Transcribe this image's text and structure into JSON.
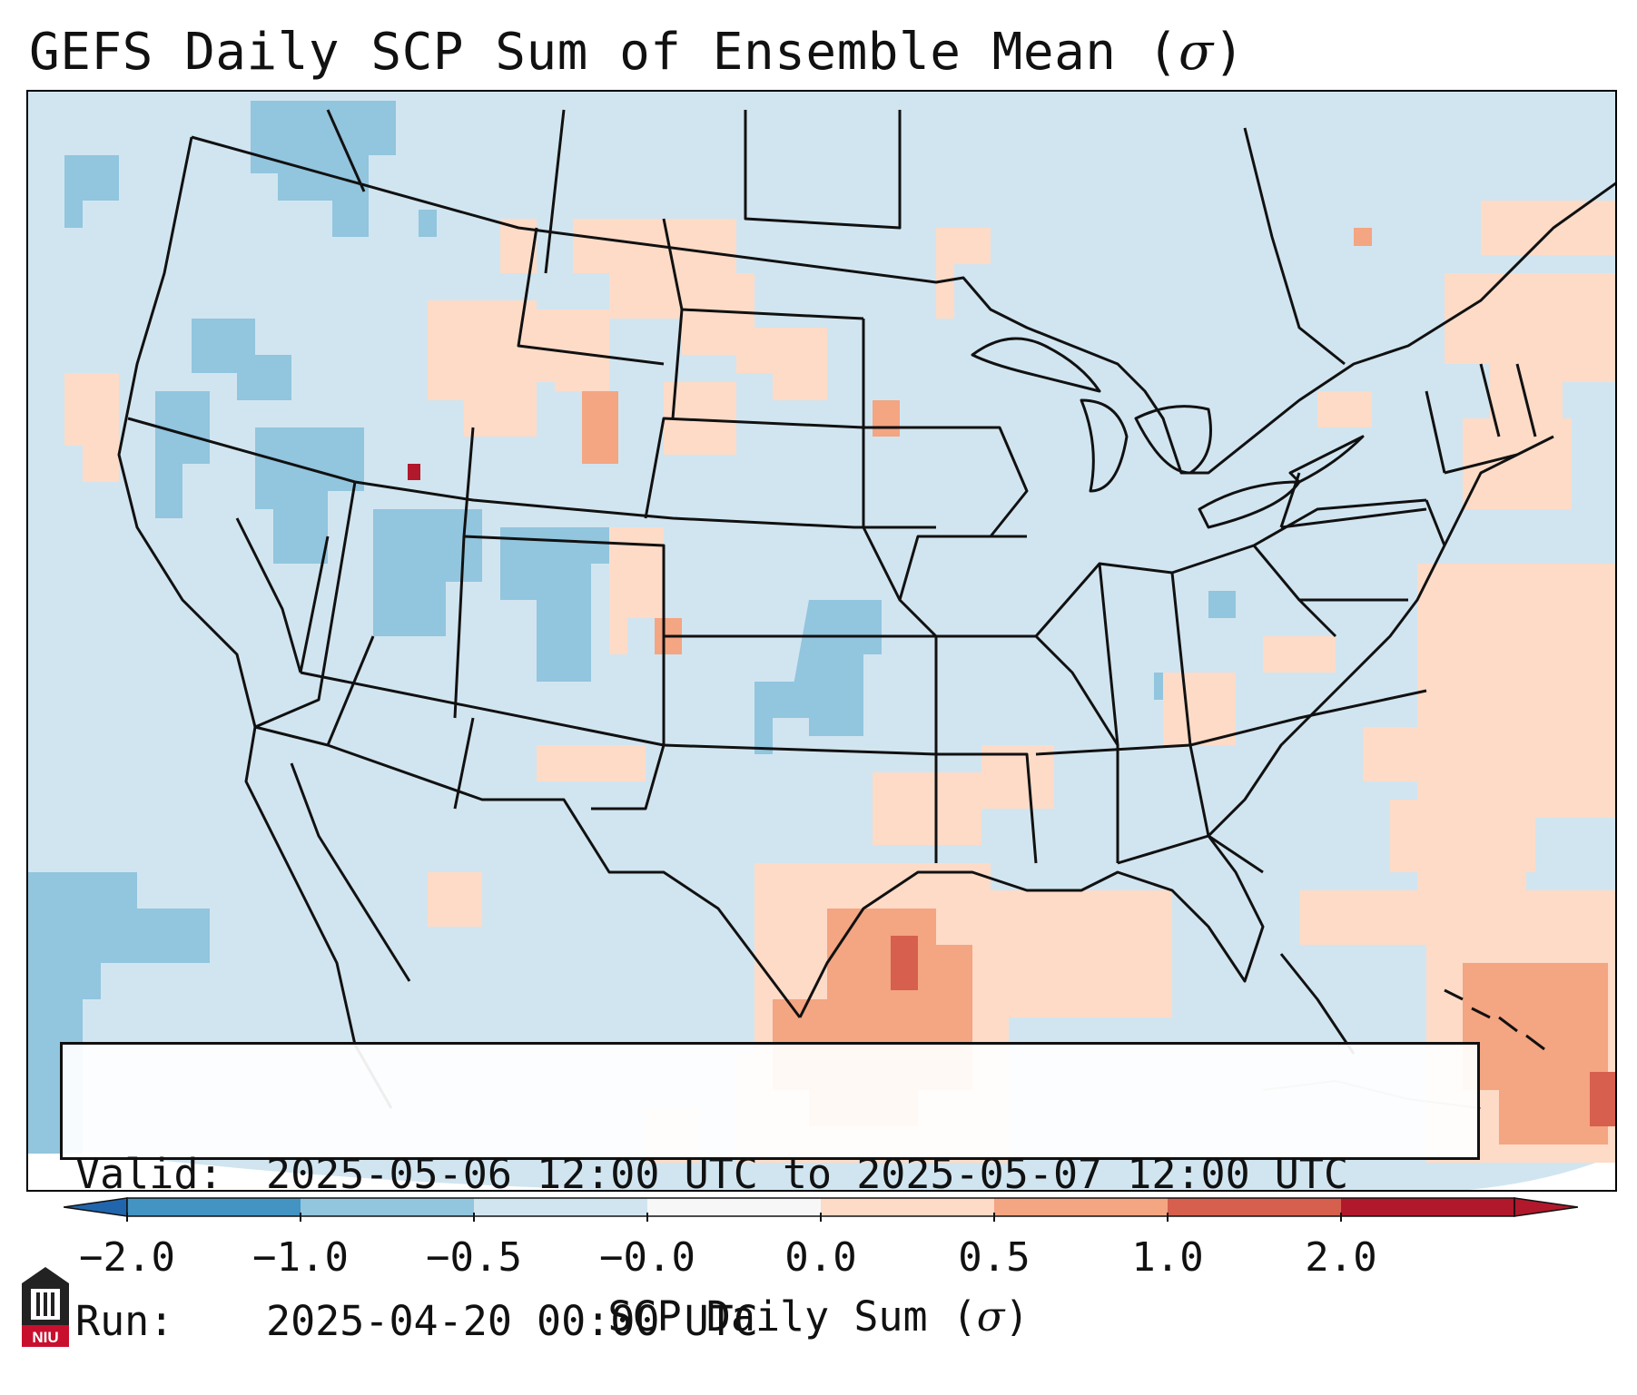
{
  "title": {
    "main": "GEFS Daily SCP Sum of Ensemble Mean (",
    "symbol": "σ",
    "close": ")"
  },
  "info": {
    "valid_label": "Valid:",
    "valid_value": "2025-05-06 12:00 UTC to 2025-05-07 12:00 UTC",
    "run_label": "Run:",
    "run_value": "2025-04-20 00:00 UTC"
  },
  "colorbar": {
    "tick_labels": [
      "−2.0",
      "−1.0",
      "−0.5",
      "−0.0",
      "0.0",
      "0.5",
      "1.0",
      "2.0"
    ],
    "bin_colors": [
      "#4393c3",
      "#92c5de",
      "#d1e5f0",
      "#f7f7f7",
      "#fddbc7",
      "#f4a582",
      "#d6604d",
      "#b2182b"
    ],
    "under_color": "#2166ac",
    "over_color": "#b2182b",
    "label_text": "SCP Daily Sum (",
    "label_symbol": "σ",
    "label_close": ")"
  },
  "logo": {
    "text": "NIU"
  },
  "map": {
    "background_color": "#d1e5f0",
    "land_color": "#d1e5f0",
    "border_color": "#111111"
  }
}
